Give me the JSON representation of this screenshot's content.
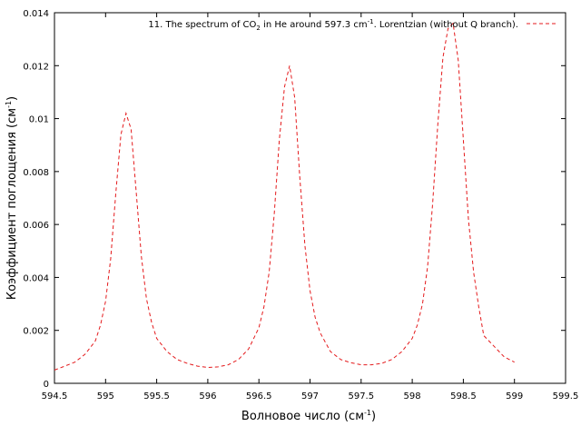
{
  "chart_data": {
    "type": "line",
    "title": "",
    "xlabel": "Волновое число (см",
    "xlabel_sup": "-1",
    "xlabel_end": ")",
    "ylabel": "Коэффициент поглощения (см",
    "ylabel_sup": "-1",
    "ylabel_end": ")",
    "xlim": [
      594.5,
      599.5
    ],
    "ylim": [
      0,
      0.014
    ],
    "xticks": [
      594.5,
      595,
      595.5,
      596,
      596.5,
      597,
      597.5,
      598,
      598.5,
      599,
      599.5
    ],
    "xtick_labels": [
      "594.5",
      "595",
      "595.5",
      "596",
      "596.5",
      "597",
      "597.5",
      "598",
      "598.5",
      "599",
      "599.5"
    ],
    "yticks": [
      0,
      0.002,
      0.004,
      0.006,
      0.008,
      0.01,
      0.012,
      0.014
    ],
    "ytick_labels": [
      "0",
      "0.002",
      "0.004",
      "0.006",
      "0.008",
      "0.01",
      "0.012",
      "0.014"
    ],
    "grid": false,
    "legend_position": "top-right",
    "legend": {
      "p1": "11. The spectrum of CO",
      "sub": "2",
      "p2": " in He around 597.3 cm",
      "sup": "-1",
      "p3": ". Lorentzian (without Q branch)."
    },
    "series": [
      {
        "name": "11. The spectrum of CO2 in He around 597.3 cm-1. Lorentzian (without Q branch).",
        "color": "#e41a1c",
        "dash": "dashed",
        "x": [
          594.5,
          594.6,
          594.7,
          594.8,
          594.9,
          594.95,
          595.0,
          595.05,
          595.1,
          595.15,
          595.2,
          595.25,
          595.3,
          595.35,
          595.4,
          595.45,
          595.5,
          595.6,
          595.7,
          595.8,
          595.9,
          596.0,
          596.1,
          596.2,
          596.3,
          596.4,
          596.5,
          596.55,
          596.6,
          596.65,
          596.7,
          596.75,
          596.8,
          596.85,
          596.9,
          596.95,
          597.0,
          597.05,
          597.1,
          597.2,
          597.3,
          597.4,
          597.5,
          597.6,
          597.7,
          597.8,
          597.9,
          598.0,
          598.05,
          598.1,
          598.15,
          598.2,
          598.25,
          598.3,
          598.35,
          598.4,
          598.45,
          598.5,
          598.55,
          598.6,
          598.65,
          598.7,
          598.8,
          598.9,
          599.0
        ],
        "values": [
          0.0005,
          0.00065,
          0.0008,
          0.0011,
          0.0016,
          0.0022,
          0.0031,
          0.0047,
          0.0072,
          0.0094,
          0.0102,
          0.0096,
          0.0072,
          0.0048,
          0.0032,
          0.0023,
          0.0017,
          0.0012,
          0.0009,
          0.00075,
          0.00065,
          0.0006,
          0.00062,
          0.0007,
          0.0009,
          0.0013,
          0.0021,
          0.0029,
          0.0042,
          0.0064,
          0.0092,
          0.0112,
          0.012,
          0.0108,
          0.0078,
          0.0052,
          0.0035,
          0.0025,
          0.0019,
          0.0012,
          0.0009,
          0.00078,
          0.0007,
          0.0007,
          0.00075,
          0.0009,
          0.0012,
          0.0017,
          0.0022,
          0.003,
          0.0044,
          0.0068,
          0.0098,
          0.0123,
          0.0134,
          0.0136,
          0.0122,
          0.0092,
          0.0062,
          0.0042,
          0.0029,
          0.0018,
          0.0014,
          0.001,
          0.0008
        ]
      }
    ]
  }
}
